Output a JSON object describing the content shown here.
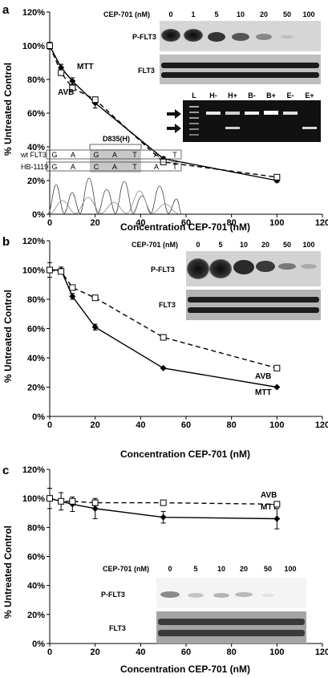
{
  "panels": [
    {
      "label": "a",
      "ylabel": "% Untreated Control",
      "xlabel": "Concentration CEP-701 (nM)"
    },
    {
      "label": "b",
      "ylabel": "% Untreated Control",
      "xlabel": "Concentration CEP-701 (nM)"
    },
    {
      "label": "c",
      "ylabel": "% Untreated Control",
      "xlabel": "Concentration CEP-701 (nM)"
    }
  ],
  "inset_a": {
    "conc_label": "CEP-701 (nM)",
    "concs": [
      "0",
      "1",
      "5",
      "10",
      "20",
      "50",
      "100"
    ],
    "row_labels": [
      "P-FLT3",
      "FLT3"
    ],
    "gel_lanes": [
      "L",
      "H-",
      "H+",
      "B-",
      "B+",
      "E-",
      "E+"
    ],
    "mutation_title": "D835(H)",
    "seq_rows": [
      {
        "name": "wt FLT3",
        "bases": [
          "G",
          "A",
          "G",
          "A",
          "T",
          "A",
          "T"
        ]
      },
      {
        "name": "HB-1119",
        "bases": [
          "G",
          "A",
          "C",
          "A",
          "T",
          "A",
          "T"
        ]
      }
    ]
  },
  "inset_b": {
    "conc_label": "CEP-701 (nM)",
    "concs": [
      "0",
      "5",
      "10",
      "20",
      "50",
      "100"
    ],
    "row_labels": [
      "P-FLT3",
      "FLT3"
    ]
  },
  "inset_c": {
    "conc_label": "CEP-701 (nM)",
    "concs": [
      "0",
      "5",
      "10",
      "20",
      "50",
      "100"
    ],
    "row_labels": [
      "P-FLT3",
      "FLT3"
    ]
  },
  "chart_data": [
    {
      "type": "line",
      "panel": "a",
      "xlabel": "Concentration CEP-701 (nM)",
      "ylabel": "% Untreated Control",
      "xlim": [
        0,
        120
      ],
      "ylim": [
        0,
        120
      ],
      "xticks": [
        0,
        20,
        40,
        60,
        80,
        100,
        120
      ],
      "yticks": [
        0,
        20,
        40,
        60,
        80,
        100,
        120
      ],
      "series": [
        {
          "name": "MTT",
          "style": "solid",
          "marker": "diamond",
          "x": [
            0,
            5,
            10,
            20,
            50,
            100
          ],
          "y": [
            100,
            87,
            79,
            66,
            33,
            20
          ],
          "err": [
            2,
            2,
            2,
            3,
            1,
            1
          ]
        },
        {
          "name": "AVB",
          "style": "dashed",
          "marker": "square",
          "x": [
            0,
            5,
            10,
            20,
            50,
            100
          ],
          "y": [
            100,
            84,
            75,
            68,
            31,
            22
          ],
          "err": [
            0,
            0,
            0,
            0,
            0,
            0
          ]
        }
      ]
    },
    {
      "type": "line",
      "panel": "b",
      "xlabel": "Concentration CEP-701 (nM)",
      "ylabel": "% Untreated Control",
      "xlim": [
        0,
        120
      ],
      "ylim": [
        0,
        120
      ],
      "xticks": [
        0,
        20,
        40,
        60,
        80,
        100,
        120
      ],
      "yticks": [
        0,
        20,
        40,
        60,
        80,
        100,
        120
      ],
      "series": [
        {
          "name": "MTT",
          "style": "solid",
          "marker": "diamond",
          "x": [
            0,
            5,
            10,
            20,
            50,
            100
          ],
          "y": [
            100,
            100,
            82,
            61,
            33,
            20
          ],
          "err": [
            5,
            2,
            2,
            2,
            0,
            0
          ]
        },
        {
          "name": "AVB",
          "style": "dashed",
          "marker": "square",
          "x": [
            0,
            5,
            10,
            20,
            50,
            100
          ],
          "y": [
            100,
            99,
            88,
            81,
            54,
            33
          ],
          "err": [
            0,
            0,
            0,
            0,
            0,
            0
          ]
        }
      ]
    },
    {
      "type": "line",
      "panel": "c",
      "xlabel": "Concentration CEP-701 (nM)",
      "ylabel": "% Untreated Control",
      "xlim": [
        0,
        120
      ],
      "ylim": [
        0,
        120
      ],
      "xticks": [
        0,
        20,
        40,
        60,
        80,
        100,
        120
      ],
      "yticks": [
        0,
        20,
        40,
        60,
        80,
        100,
        120
      ],
      "series": [
        {
          "name": "MTT",
          "style": "solid",
          "marker": "diamond",
          "x": [
            0,
            5,
            10,
            20,
            50,
            100
          ],
          "y": [
            100,
            98,
            96,
            93,
            87,
            86
          ],
          "err": [
            7,
            6,
            5,
            7,
            4,
            7
          ]
        },
        {
          "name": "AVB",
          "style": "dashed",
          "marker": "square",
          "x": [
            0,
            5,
            10,
            20,
            50,
            100
          ],
          "y": [
            100,
            98,
            98,
            97,
            97,
            96
          ],
          "err": [
            0,
            0,
            0,
            2,
            0,
            0
          ]
        }
      ]
    }
  ]
}
